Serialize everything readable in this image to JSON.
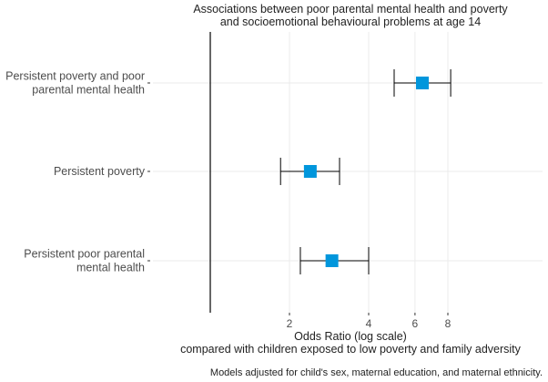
{
  "chart_data": {
    "type": "scatter",
    "title_lines": [
      "Associations between poor parental mental health and poverty",
      "and socioemotional behavioural problems at age 14"
    ],
    "xlabel_lines": [
      "Odds Ratio (log scale)",
      "compared with children exposed to low poverty and family adversity"
    ],
    "caption": "Models adjusted for child's sex, maternal education, and maternal ethnicity.",
    "x_scale": "log",
    "xlim": [
      1,
      9.4
    ],
    "x_ticks": [
      2,
      4,
      6,
      8
    ],
    "reference_line": 1,
    "grid": true,
    "marker_color": "#0096dc",
    "categories": [
      {
        "label_lines": [
          "Persistent poverty and poor",
          "parental mental health"
        ],
        "estimate": 6.4,
        "ci_low": 5.0,
        "ci_high": 8.2
      },
      {
        "label_lines": [
          "Persistent poverty"
        ],
        "estimate": 2.4,
        "ci_low": 1.85,
        "ci_high": 3.1
      },
      {
        "label_lines": [
          "Persistent poor parental",
          "mental health"
        ],
        "estimate": 2.9,
        "ci_low": 2.2,
        "ci_high": 4.0
      }
    ]
  }
}
